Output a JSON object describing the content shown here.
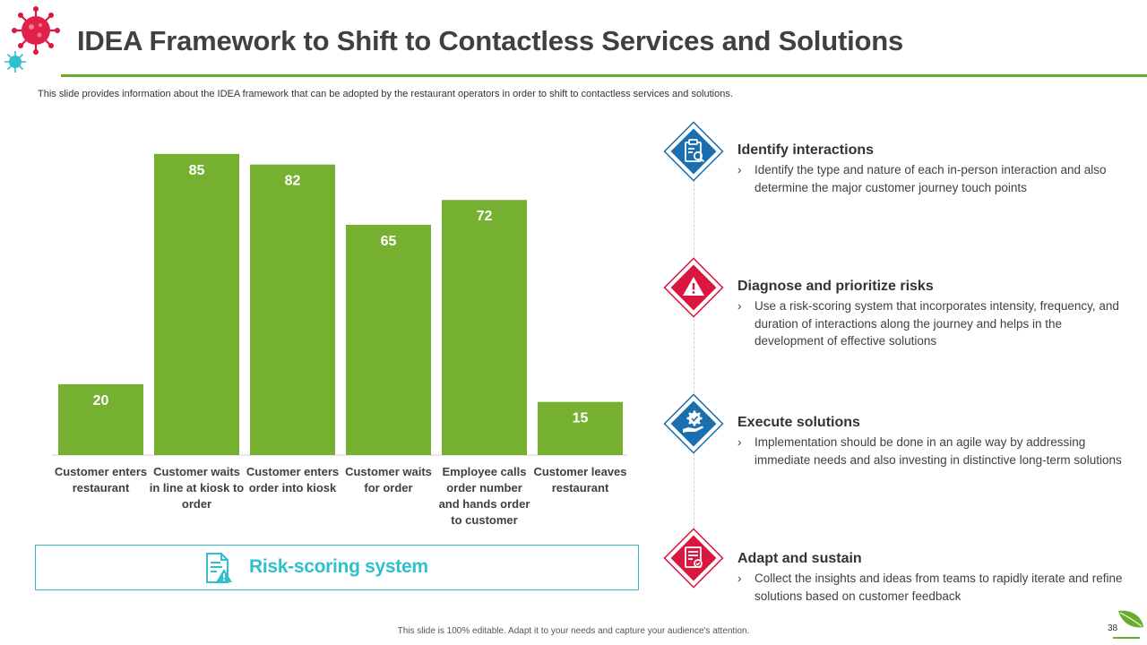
{
  "header": {
    "title": "IDEA Framework to Shift to Contactless Services and Solutions",
    "subtitle": "This slide provides information about the IDEA framework that can be adopted by the restaurant operators in order to shift to contactless services and solutions."
  },
  "colors": {
    "bar": "#76b031",
    "accent_green": "#6aad2c",
    "teal": "#2fbfcd",
    "blue": "#1a6fae",
    "red": "#d9173f"
  },
  "chart_data": {
    "type": "bar",
    "categories": [
      [
        "Customer enters",
        "restaurant"
      ],
      [
        "Customer waits",
        "in line at kiosk to",
        "order"
      ],
      [
        "Customer enters",
        "order into kiosk"
      ],
      [
        "Customer waits",
        "for order"
      ],
      [
        "Employee calls",
        "order number",
        "and hands order",
        "to customer"
      ],
      [
        "Customer leaves",
        "restaurant"
      ]
    ],
    "values": [
      20,
      85,
      82,
      65,
      72,
      15
    ],
    "ylim": [
      0,
      90
    ],
    "grid": false,
    "data_labels": true
  },
  "risk_banner": {
    "label": "Risk-scoring system",
    "icon": "document-warning-icon"
  },
  "steps": [
    {
      "icon": "clipboard-search-icon",
      "color": "#1a6fae",
      "title": "Identify interactions",
      "desc": "Identify the type and nature of each in-person interaction and also determine the major customer journey touch points"
    },
    {
      "icon": "warning-triangle-icon",
      "color": "#d9173f",
      "title": "Diagnose and prioritize risks",
      "desc": "Use a risk-scoring system that incorporates intensity, frequency, and duration of interactions along the journey and helps in the development of effective solutions"
    },
    {
      "icon": "hand-gear-icon",
      "color": "#1a6fae",
      "title": "Execute solutions",
      "desc": "Implementation should be done in an agile way by addressing immediate needs and also investing in distinctive long-term solutions"
    },
    {
      "icon": "certificate-icon",
      "color": "#d9173f",
      "title": "Adapt and sustain",
      "desc": "Collect the insights and ideas from teams to rapidly iterate and refine solutions based on customer feedback"
    }
  ],
  "step_bullet": "›",
  "footer": {
    "note": "This slide is 100% editable. Adapt it to your needs and capture your audience's attention.",
    "page": "38"
  }
}
